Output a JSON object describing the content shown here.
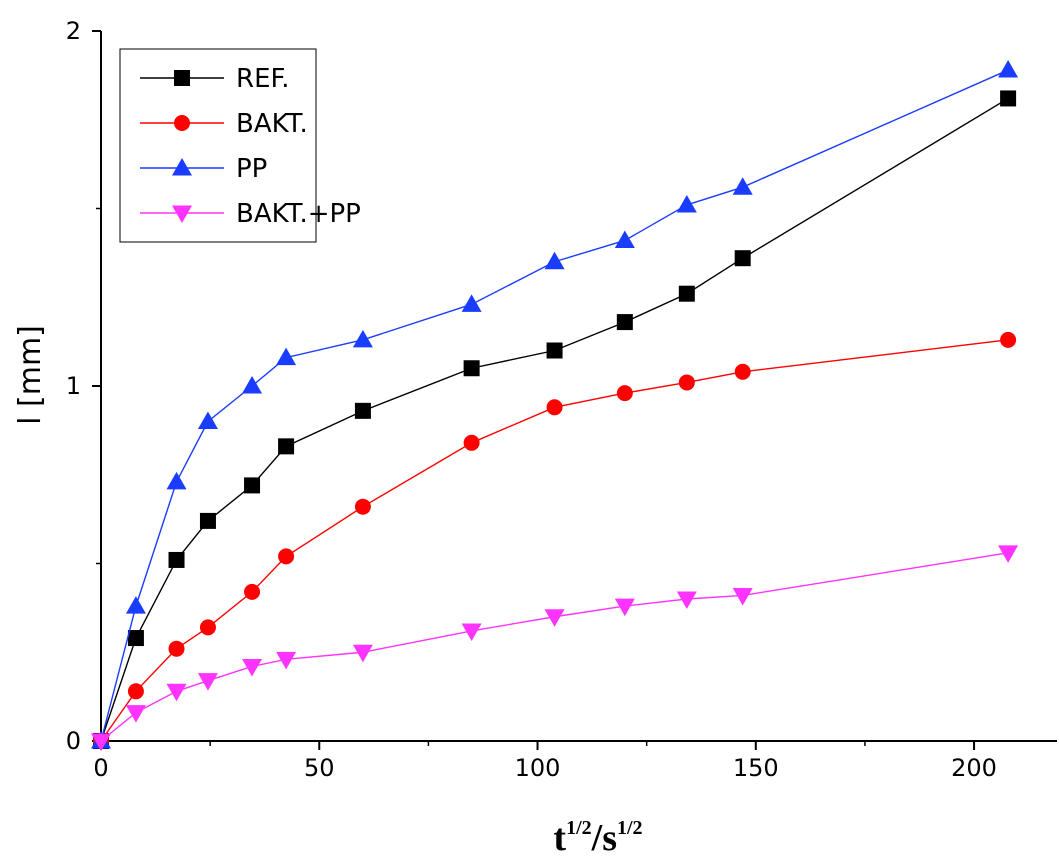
{
  "chart_data": {
    "type": "line",
    "title": "",
    "xlabel_base": "t",
    "xlabel_exp": "1/2",
    "xlabel_sep": "/s",
    "xlabel_exp2": "1/2",
    "ylabel": "l [mm]",
    "xlim": [
      0,
      219
    ],
    "ylim": [
      0,
      2
    ],
    "x_ticks": [
      0,
      50,
      100,
      150,
      200
    ],
    "y_ticks": [
      0,
      1,
      2
    ],
    "grid": false,
    "legend_position": "top-left",
    "x": [
      0,
      8,
      17.3,
      24.5,
      34.6,
      42.4,
      60,
      84.9,
      103.9,
      120,
      134.2,
      147,
      207.8
    ],
    "series": [
      {
        "name": "REF.",
        "color": "#000000",
        "marker": "square",
        "values": [
          0,
          0.29,
          0.51,
          0.62,
          0.72,
          0.83,
          0.93,
          1.05,
          1.1,
          1.18,
          1.26,
          1.36,
          1.81
        ]
      },
      {
        "name": "BAKT.",
        "color": "#ff0000",
        "marker": "circle",
        "values": [
          0,
          0.14,
          0.26,
          0.32,
          0.42,
          0.52,
          0.66,
          0.84,
          0.94,
          0.98,
          1.01,
          1.04,
          1.13
        ]
      },
      {
        "name": "PP",
        "color": "#1a3cff",
        "marker": "triangle-up",
        "values": [
          0,
          0.38,
          0.73,
          0.9,
          1.0,
          1.08,
          1.13,
          1.23,
          1.35,
          1.41,
          1.51,
          1.56,
          1.89
        ]
      },
      {
        "name": "BAKT.+PP",
        "color": "#ff33ff",
        "marker": "triangle-down",
        "values": [
          0,
          0.08,
          0.14,
          0.17,
          0.21,
          0.23,
          0.25,
          0.31,
          0.35,
          0.38,
          0.4,
          0.41,
          0.53
        ]
      }
    ]
  }
}
